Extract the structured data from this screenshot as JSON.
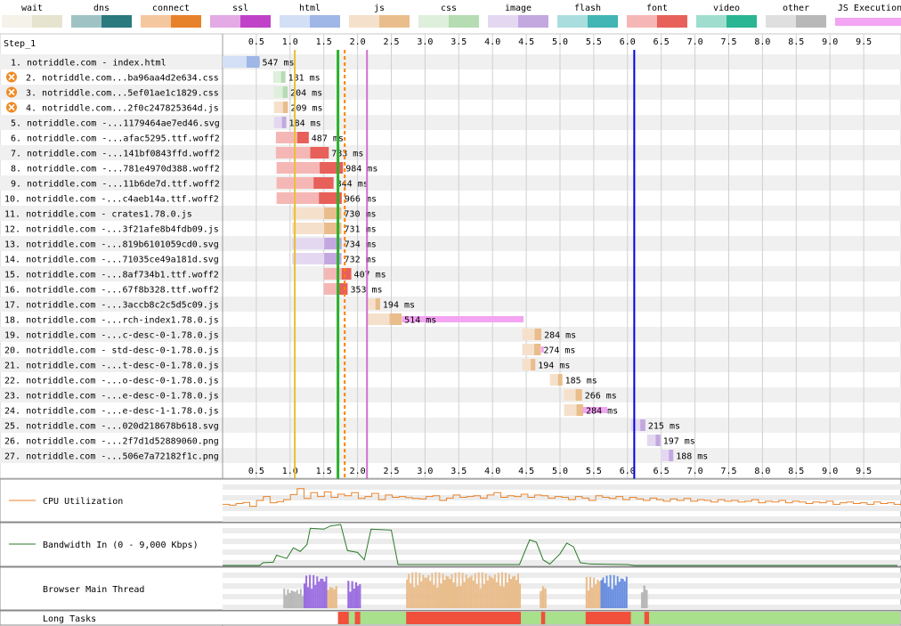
{
  "legend": [
    {
      "label": "wait",
      "color": "#e6e3cf"
    },
    {
      "label": "dns",
      "color": "#2a7a7e"
    },
    {
      "label": "connect",
      "color": "#e8822a"
    },
    {
      "label": "ssl",
      "color": "#c042c8"
    },
    {
      "label": "html",
      "color": "#9eb7e6"
    },
    {
      "label": "js",
      "color": "#e9bd8c"
    },
    {
      "label": "css",
      "color": "#b5dcb2"
    },
    {
      "label": "image",
      "color": "#c3a8e0"
    },
    {
      "label": "flash",
      "color": "#42b5b5"
    },
    {
      "label": "font",
      "color": "#e8605a"
    },
    {
      "label": "video",
      "color": "#2ab593"
    },
    {
      "label": "other",
      "color": "#b8b8b8"
    },
    {
      "label": "JS Execution",
      "color": "#f3a4f2"
    }
  ],
  "step_label": "Step_1",
  "chart_data": {
    "type": "waterfall",
    "time_unit": "s",
    "x_ticks": [
      "0.5",
      "1.0",
      "1.5",
      "2.0",
      "2.5",
      "3.0",
      "3.5",
      "4.0",
      "4.5",
      "5.0",
      "5.5",
      "6.0",
      "6.5",
      "7.0",
      "7.5",
      "8.0",
      "8.5",
      "9.0",
      "9.5"
    ],
    "xlim": [
      0,
      10
    ],
    "markers": [
      {
        "time": 1.07,
        "color": "#e8c034"
      },
      {
        "time": 1.71,
        "color": "#2ab02a"
      },
      {
        "time": 1.81,
        "color": "#ff7f00",
        "dashed": true
      },
      {
        "time": 2.14,
        "color": "#d070d0"
      },
      {
        "time": 6.1,
        "color": "#0000e0"
      }
    ],
    "requests": [
      {
        "label": "1. notriddle.com - index.html",
        "type": "html",
        "start": 0.0,
        "duration": 547,
        "duration_label": "547 ms",
        "blocking": false,
        "phases": [
          {
            "type": "wait",
            "start": 0.0,
            "end": 0.18
          },
          {
            "type": "connect",
            "start": 0.18,
            "end": 0.35
          },
          {
            "type": "ssl",
            "start": 0.35,
            "end": 0.55
          }
        ]
      },
      {
        "label": "2. notriddle.com...ba96aa4d2e634.css",
        "type": "css",
        "start": 0.75,
        "duration": 181,
        "duration_label": "181 ms",
        "blocking": true
      },
      {
        "label": "3. notriddle.com...5ef01ae1c1829.css",
        "type": "css",
        "start": 0.76,
        "duration": 204,
        "duration_label": "204 ms",
        "blocking": true
      },
      {
        "label": "4. notriddle.com...2f0c247825364d.js",
        "type": "js",
        "start": 0.76,
        "duration": 209,
        "duration_label": "209 ms",
        "blocking": true
      },
      {
        "label": "5. notriddle.com -...1179464ae7ed46.svg",
        "type": "image",
        "start": 0.76,
        "duration": 184,
        "duration_label": "184 ms",
        "blocking": false
      },
      {
        "label": "6. notriddle.com -...afac5295.ttf.woff2",
        "type": "font",
        "start": 0.79,
        "duration": 487,
        "duration_label": "487 ms",
        "blocking": false
      },
      {
        "label": "7. notriddle.com -...141bf0843ffd.woff2",
        "type": "font",
        "start": 0.79,
        "duration": 783,
        "duration_label": "783 ms",
        "blocking": false
      },
      {
        "label": "8. notriddle.com -...781e4970d388.woff2",
        "type": "font",
        "start": 0.8,
        "duration": 984,
        "duration_label": "984 ms",
        "blocking": false
      },
      {
        "label": "9. notriddle.com -...11b6de7d.ttf.woff2",
        "type": "font",
        "start": 0.8,
        "duration": 844,
        "duration_label": "844 ms",
        "blocking": false
      },
      {
        "label": "10. notriddle.com -...c4aeb14a.ttf.woff2",
        "type": "font",
        "start": 0.8,
        "duration": 966,
        "duration_label": "966 ms",
        "blocking": false
      },
      {
        "label": "11. notriddle.com - crates1.78.0.js",
        "type": "js",
        "start": 1.03,
        "duration": 730,
        "duration_label": "730 ms",
        "blocking": false
      },
      {
        "label": "12. notriddle.com -...3f21afe8b4fdb09.js",
        "type": "js",
        "start": 1.03,
        "duration": 731,
        "duration_label": "731 ms",
        "blocking": false
      },
      {
        "label": "13. notriddle.com -...819b6101059cd0.svg",
        "type": "image",
        "start": 1.03,
        "duration": 734,
        "duration_label": "734 ms",
        "blocking": false
      },
      {
        "label": "14. notriddle.com -...71035ce49a181d.svg",
        "type": "image",
        "start": 1.03,
        "duration": 732,
        "duration_label": "732 ms",
        "blocking": false
      },
      {
        "label": "15. notriddle.com -...8af734b1.ttf.woff2",
        "type": "font",
        "start": 1.5,
        "duration": 407,
        "duration_label": "407 ms",
        "blocking": false
      },
      {
        "label": "16. notriddle.com -...67f8b328.ttf.woff2",
        "type": "font",
        "start": 1.5,
        "duration": 353,
        "duration_label": "353 ms",
        "blocking": false
      },
      {
        "label": "17. notriddle.com -...3accb8c2c5d5c09.js",
        "type": "js",
        "start": 2.14,
        "duration": 194,
        "duration_label": "194 ms",
        "blocking": false
      },
      {
        "label": "18. notriddle.com -...rch-index1.78.0.js",
        "type": "js",
        "start": 2.14,
        "duration": 514,
        "duration_label": "514 ms",
        "blocking": false,
        "js_exec": [
          2.66,
          4.46
        ]
      },
      {
        "label": "19. notriddle.com -...c-desc-0-1.78.0.js",
        "type": "js",
        "start": 4.44,
        "duration": 284,
        "duration_label": "284 ms",
        "blocking": false
      },
      {
        "label": "20. notriddle.com - std-desc-0-1.78.0.js",
        "type": "js",
        "start": 4.44,
        "duration": 274,
        "duration_label": "274 ms",
        "blocking": false,
        "js_exec": [
          4.72,
          4.76
        ]
      },
      {
        "label": "21. notriddle.com -...t-desc-0-1.78.0.js",
        "type": "js",
        "start": 4.44,
        "duration": 194,
        "duration_label": "194 ms",
        "blocking": false
      },
      {
        "label": "22. notriddle.com -...o-desc-0-1.78.0.js",
        "type": "js",
        "start": 4.85,
        "duration": 185,
        "duration_label": "185 ms",
        "blocking": false
      },
      {
        "label": "23. notriddle.com -...e-desc-0-1.78.0.js",
        "type": "js",
        "start": 5.06,
        "duration": 266,
        "duration_label": "266 ms",
        "blocking": false
      },
      {
        "label": "24. notriddle.com -...e-desc-1-1.78.0.js",
        "type": "js",
        "start": 5.06,
        "duration": 284,
        "duration_label": "284 ms",
        "blocking": false,
        "js_exec": [
          5.34,
          5.7
        ]
      },
      {
        "label": "25. notriddle.com -...020d218678b618.svg",
        "type": "image",
        "start": 6.05,
        "duration": 215,
        "duration_label": "215 ms",
        "blocking": false
      },
      {
        "label": "26. notriddle.com -...2f7d1d52889060.png",
        "type": "image",
        "start": 6.29,
        "duration": 197,
        "duration_label": "197 ms",
        "blocking": false
      },
      {
        "label": "27. notriddle.com -...506e7a72182f1c.png",
        "type": "image",
        "start": 6.49,
        "duration": 188,
        "duration_label": "188 ms",
        "blocking": false
      }
    ],
    "cpu": {
      "label": "CPU Utilization",
      "color": "#e8822a",
      "values_pct": [
        40,
        38,
        42,
        45,
        35,
        50,
        60,
        44,
        47,
        52,
        65,
        80,
        55,
        70,
        60,
        72,
        58,
        66,
        62,
        70,
        55,
        60,
        68,
        52,
        64,
        58,
        60,
        57,
        55,
        54,
        60,
        62,
        50,
        56,
        64,
        58,
        60,
        62,
        56,
        64,
        70,
        58,
        62,
        60,
        66,
        58,
        64,
        62,
        56,
        60,
        58,
        52,
        60,
        56,
        50,
        62,
        58,
        55,
        60,
        52,
        58,
        54,
        50,
        56,
        52,
        48,
        54,
        50,
        55,
        48,
        52,
        50,
        46,
        52,
        48,
        50,
        46,
        48,
        52,
        44,
        48,
        46,
        50,
        44,
        48,
        46,
        42,
        46,
        44,
        48,
        40,
        44,
        46,
        42,
        44,
        40,
        46,
        42,
        44,
        40
      ]
    },
    "bandwidth": {
      "label": "Bandwidth In (0 - 9,000 Kbps)",
      "color": "#2a7a2a",
      "ylim_kbps": [
        0,
        9000
      ],
      "points": [
        [
          0,
          0
        ],
        [
          0.55,
          0
        ],
        [
          0.6,
          600
        ],
        [
          0.75,
          700
        ],
        [
          0.8,
          2200
        ],
        [
          0.95,
          1500
        ],
        [
          1.05,
          3800
        ],
        [
          1.15,
          3000
        ],
        [
          1.25,
          4500
        ],
        [
          1.3,
          8000
        ],
        [
          1.5,
          7800
        ],
        [
          1.6,
          8500
        ],
        [
          1.75,
          8800
        ],
        [
          1.85,
          3200
        ],
        [
          2.0,
          2800
        ],
        [
          2.1,
          1200
        ],
        [
          2.2,
          7800
        ],
        [
          2.5,
          7600
        ],
        [
          2.6,
          200
        ],
        [
          4.4,
          200
        ],
        [
          4.55,
          5500
        ],
        [
          4.65,
          5000
        ],
        [
          4.75,
          1200
        ],
        [
          4.85,
          300
        ],
        [
          5.0,
          2500
        ],
        [
          5.1,
          4800
        ],
        [
          5.2,
          4000
        ],
        [
          5.3,
          600
        ],
        [
          5.45,
          300
        ],
        [
          6.0,
          200
        ],
        [
          6.1,
          0
        ],
        [
          10,
          0
        ]
      ]
    },
    "main_thread_label": "Browser Main Thread",
    "long_tasks": {
      "label": "Long Tasks",
      "segments": [
        {
          "start": 1.71,
          "end": 1.87,
          "kind": "long"
        },
        {
          "start": 1.96,
          "end": 2.04,
          "kind": "long"
        },
        {
          "start": 2.72,
          "end": 4.42,
          "kind": "long"
        },
        {
          "start": 4.72,
          "end": 4.78,
          "kind": "long"
        },
        {
          "start": 5.38,
          "end": 6.05,
          "kind": "long"
        },
        {
          "start": 6.25,
          "end": 6.32,
          "kind": "long"
        }
      ],
      "long_color": "#f0503c",
      "idle_color": "#a8e08c"
    }
  }
}
